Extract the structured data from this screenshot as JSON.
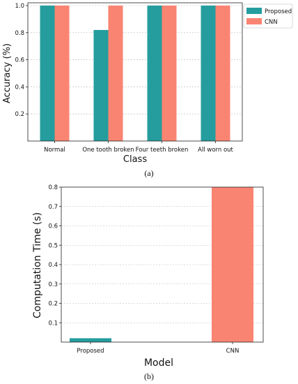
{
  "colors": {
    "proposed": "#259d9e",
    "cnn": "#fa8472"
  },
  "chart_data": [
    {
      "type": "bar",
      "categories": [
        "Normal",
        "One tooth broken",
        "Four teeth broken",
        "All worn out"
      ],
      "series": [
        {
          "name": "Proposed",
          "values": [
            1.0,
            0.82,
            1.0,
            1.0
          ]
        },
        {
          "name": "CNN",
          "values": [
            1.0,
            1.0,
            1.0,
            1.0
          ]
        }
      ],
      "xlabel": "Class",
      "ylabel": "Accuracy (%)",
      "ylim": [
        0,
        1.0
      ],
      "yticks": [
        "0.2",
        "0.4",
        "0.6",
        "0.8",
        "1.0"
      ],
      "grid": true,
      "legend": "outside-right",
      "caption": "(a)"
    },
    {
      "type": "bar",
      "categories": [
        "Proposed",
        "CNN"
      ],
      "values": [
        0.02,
        0.8
      ],
      "xlabel": "Model",
      "ylabel": "Computation Time (s)",
      "ylim": [
        0,
        0.8
      ],
      "yticks": [
        "0.1",
        "0.2",
        "0.3",
        "0.4",
        "0.5",
        "0.6",
        "0.7",
        "0.8"
      ],
      "grid": true,
      "caption": "(b)"
    }
  ]
}
